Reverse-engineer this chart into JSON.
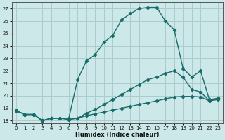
{
  "xlabel": "Humidex (Indice chaleur)",
  "ylabel": "",
  "background_color": "#cce8e8",
  "grid_color": "#aacccc",
  "line_color": "#1a6b6b",
  "xlim": [
    -0.5,
    23.5
  ],
  "ylim": [
    17.8,
    27.5
  ],
  "xticks": [
    0,
    1,
    2,
    3,
    4,
    5,
    6,
    7,
    8,
    9,
    10,
    11,
    12,
    13,
    14,
    15,
    16,
    17,
    18,
    19,
    20,
    21,
    22,
    23
  ],
  "yticks": [
    18,
    19,
    20,
    21,
    22,
    23,
    24,
    25,
    26,
    27
  ],
  "series3_x": [
    0,
    1,
    2,
    3,
    4,
    5,
    6,
    7,
    8,
    9,
    10,
    11,
    12,
    13,
    14,
    15,
    16,
    17,
    18,
    19,
    20,
    21,
    22,
    23
  ],
  "series3_y": [
    18.8,
    18.5,
    18.5,
    18.0,
    18.2,
    18.2,
    18.2,
    21.3,
    22.8,
    23.3,
    24.3,
    24.85,
    26.1,
    26.6,
    27.0,
    27.1,
    27.1,
    26.0,
    25.3,
    22.2,
    21.5,
    22.0,
    19.7,
    19.8
  ],
  "series2_x": [
    0,
    1,
    2,
    3,
    4,
    5,
    6,
    7,
    8,
    9,
    10,
    11,
    12,
    13,
    14,
    15,
    16,
    17,
    18,
    19,
    20,
    21,
    22,
    23
  ],
  "series2_y": [
    18.8,
    18.5,
    18.5,
    18.0,
    18.2,
    18.2,
    18.1,
    18.2,
    18.6,
    18.9,
    19.3,
    19.7,
    20.1,
    20.5,
    20.9,
    21.3,
    21.5,
    21.8,
    22.0,
    21.5,
    20.5,
    20.3,
    19.6,
    19.8
  ],
  "series1_x": [
    0,
    1,
    2,
    3,
    4,
    5,
    6,
    7,
    8,
    9,
    10,
    11,
    12,
    13,
    14,
    15,
    16,
    17,
    18,
    19,
    20,
    21,
    22,
    23
  ],
  "series1_y": [
    18.8,
    18.5,
    18.5,
    18.0,
    18.2,
    18.2,
    18.1,
    18.2,
    18.4,
    18.55,
    18.7,
    18.85,
    19.0,
    19.15,
    19.3,
    19.45,
    19.6,
    19.75,
    19.9,
    19.95,
    19.95,
    19.9,
    19.6,
    19.7
  ]
}
